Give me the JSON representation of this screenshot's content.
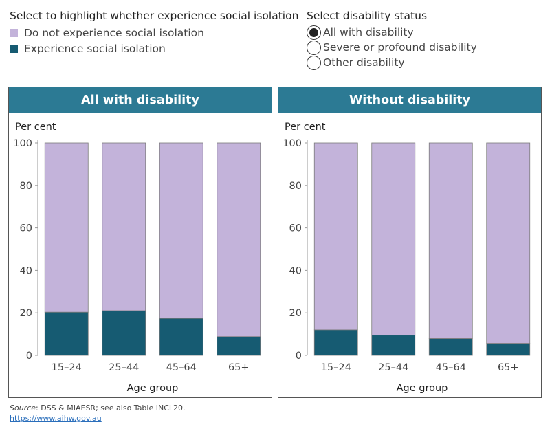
{
  "legend": {
    "title": "Select to highlight whether experience social isolation",
    "items": [
      {
        "label": "Do not experience social isolation",
        "color": "#c3b3da"
      },
      {
        "label": "Experience social isolation",
        "color": "#165b72"
      }
    ]
  },
  "status": {
    "title": "Select disability status",
    "options": [
      {
        "label": "All with disability",
        "selected": true
      },
      {
        "label": "Severe or profound disability",
        "selected": false
      },
      {
        "label": "Other disability",
        "selected": false
      }
    ]
  },
  "colors": {
    "header": "#2c7a94",
    "not_isolated": "#c3b3da",
    "isolated": "#165b72",
    "bar_border": "#7a7a7a"
  },
  "chart_data": [
    {
      "type": "bar",
      "stacked": true,
      "title": "All with disability",
      "ylabel": "Per cent",
      "xlabel": "Age group",
      "ylim": [
        0,
        100
      ],
      "yticks": [
        0,
        20,
        40,
        60,
        80,
        100
      ],
      "categories": [
        "15–24",
        "25–44",
        "45–64",
        "65+"
      ],
      "series": [
        {
          "name": "Experience social isolation",
          "values": [
            20.3,
            21.0,
            17.4,
            8.8
          ]
        },
        {
          "name": "Do not experience social isolation",
          "values": [
            79.7,
            79.0,
            82.6,
            91.2
          ]
        }
      ]
    },
    {
      "type": "bar",
      "stacked": true,
      "title": "Without disability",
      "ylabel": "Per cent",
      "xlabel": "Age group",
      "ylim": [
        0,
        100
      ],
      "yticks": [
        0,
        20,
        40,
        60,
        80,
        100
      ],
      "categories": [
        "15–24",
        "25–44",
        "45–64",
        "65+"
      ],
      "series": [
        {
          "name": "Experience social isolation",
          "values": [
            12.0,
            9.5,
            7.9,
            5.6
          ]
        },
        {
          "name": "Do not experience social isolation",
          "values": [
            88.0,
            90.5,
            92.1,
            94.4
          ]
        }
      ]
    }
  ],
  "footer": {
    "source_label": "Source",
    "source_text": ": DSS & MIAESR; see also Table INCL20.",
    "url": "https://www.aihw.gov.au"
  }
}
